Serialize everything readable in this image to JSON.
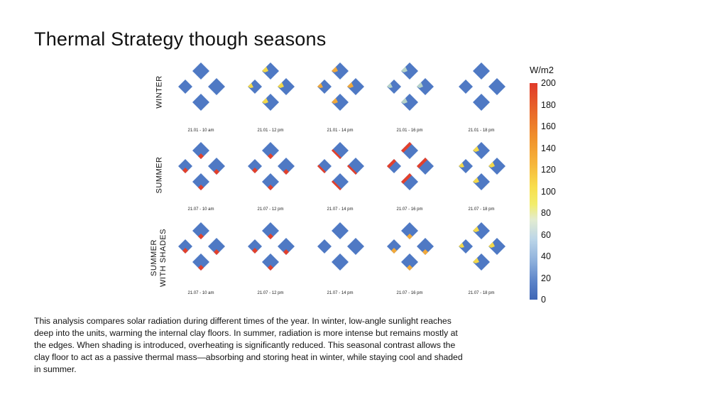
{
  "title": "Thermal Strategy though seasons",
  "legend": {
    "unit": "W/m2",
    "ticks": [
      "200",
      "180",
      "160",
      "140",
      "120",
      "100",
      "80",
      "60",
      "40",
      "20",
      "0"
    ]
  },
  "rows": [
    {
      "label": "WINTER",
      "captions": [
        "21.01 - 10 am",
        "21.01 - 12 pm",
        "21.01 - 14 pm",
        "21.01 - 16 pm",
        "21.01 - 18 pm"
      ]
    },
    {
      "label": "SUMMER",
      "captions": [
        "21.07 - 10 am",
        "21.07 - 12 pm",
        "21.07 - 14 pm",
        "21.07 - 16 pm",
        "21.07 - 18 pm"
      ]
    },
    {
      "label": "SUMMER\nWITH SHADES",
      "label_line1": "SUMMER",
      "label_line2": "WITH SHADES",
      "captions": [
        "21.07 - 10 am",
        "21.07 - 12 pm",
        "21.07 - 14 pm",
        "21.07 - 16 pm",
        "21.07 - 18 pm"
      ]
    }
  ],
  "colors": {
    "base": "#4f79c4",
    "yellow": "#f3d84a",
    "orange": "#f2a93a",
    "red": "#e2402c",
    "pale": "#b7d3c8",
    "lightblue": "#8fb6df"
  },
  "description": "This analysis compares solar radiation during different times of the year. In winter, low-angle sunlight reaches deep into the units, warming the internal clay floors. In summer, radiation is more intense but remains mostly at the edges. When shading is introduced, overheating is significantly reduced. This seasonal contrast allows the clay floor to act as a passive thermal mass—absorbing and storing heat in winter, while staying cool and shaded in summer."
}
